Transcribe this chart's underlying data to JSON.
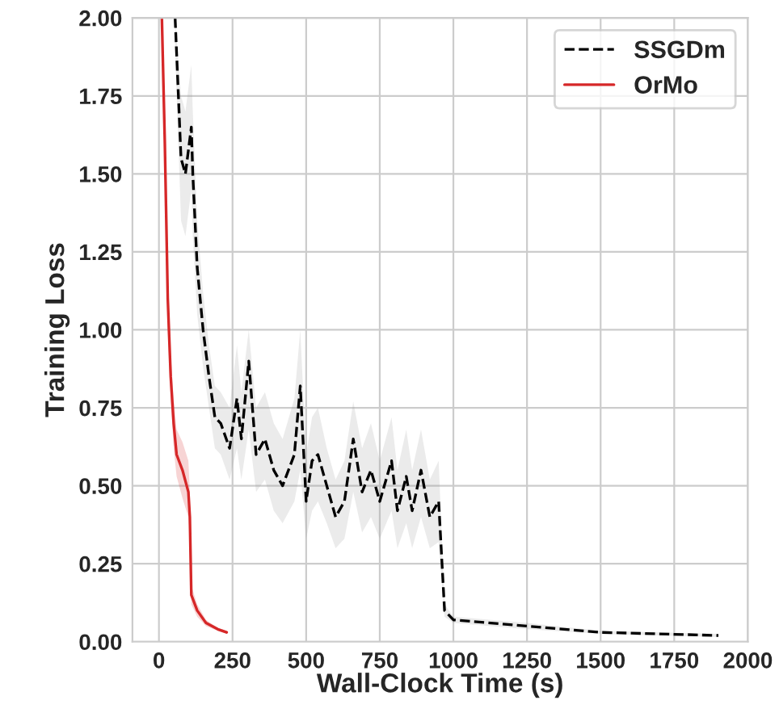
{
  "chart_data": {
    "type": "line",
    "xlabel": "Wall-Clock Time (s)",
    "ylabel": "Training Loss",
    "xlim": [
      -90,
      2000
    ],
    "xticks": [
      0,
      250,
      500,
      750,
      1000,
      1250,
      1500,
      1750,
      2000
    ],
    "ylim": [
      0,
      2
    ],
    "yticks": [
      {
        "value": 0,
        "label": "0.00"
      },
      {
        "value": 0.25,
        "label": "0.25"
      },
      {
        "value": 0.5,
        "label": "0.50"
      },
      {
        "value": 0.75,
        "label": "0.75"
      },
      {
        "value": 1,
        "label": "1.00"
      },
      {
        "value": 1.25,
        "label": "1.25"
      },
      {
        "value": 1.5,
        "label": "1.50"
      },
      {
        "value": 1.75,
        "label": "1.75"
      },
      {
        "value": 2,
        "label": "2.00"
      }
    ],
    "grid": true,
    "legend": "top right",
    "series": [
      {
        "name": "SSGDm",
        "color": "#000000",
        "line_style": "dashed",
        "x": [
          55,
          75,
          90,
          110,
          115,
          130,
          150,
          170,
          190,
          210,
          240,
          265,
          280,
          305,
          330,
          360,
          390,
          420,
          460,
          480,
          500,
          520,
          540,
          570,
          600,
          630,
          660,
          690,
          720,
          750,
          790,
          810,
          840,
          860,
          890,
          920,
          950,
          970,
          1000,
          1250,
          1500,
          1900
        ],
        "values": [
          2.0,
          1.55,
          1.5,
          1.65,
          1.5,
          1.2,
          1.0,
          0.85,
          0.72,
          0.7,
          0.62,
          0.78,
          0.65,
          0.9,
          0.6,
          0.65,
          0.55,
          0.5,
          0.6,
          0.82,
          0.45,
          0.58,
          0.6,
          0.5,
          0.4,
          0.45,
          0.65,
          0.48,
          0.55,
          0.45,
          0.58,
          0.42,
          0.53,
          0.42,
          0.55,
          0.4,
          0.45,
          0.1,
          0.07,
          0.05,
          0.03,
          0.02
        ],
        "lower": [
          1.9,
          1.35,
          1.3,
          1.45,
          1.3,
          1.05,
          0.88,
          0.75,
          0.62,
          0.6,
          0.52,
          0.62,
          0.52,
          0.68,
          0.48,
          0.52,
          0.42,
          0.38,
          0.45,
          0.55,
          0.33,
          0.42,
          0.45,
          0.38,
          0.3,
          0.33,
          0.48,
          0.35,
          0.4,
          0.33,
          0.42,
          0.3,
          0.38,
          0.3,
          0.4,
          0.3,
          0.32,
          0.08,
          0.06,
          0.04,
          0.025,
          0.015
        ],
        "upper": [
          2.0,
          1.75,
          1.7,
          1.85,
          1.7,
          1.35,
          1.12,
          0.95,
          0.82,
          0.8,
          0.75,
          0.95,
          0.8,
          1.0,
          0.75,
          0.8,
          0.7,
          0.65,
          0.78,
          1.0,
          0.6,
          0.72,
          0.75,
          0.62,
          0.52,
          0.58,
          0.77,
          0.62,
          0.7,
          0.58,
          0.72,
          0.55,
          0.68,
          0.55,
          0.68,
          0.52,
          0.58,
          0.12,
          0.08,
          0.06,
          0.035,
          0.025
        ]
      },
      {
        "name": "OrMo",
        "color": "#d62728",
        "line_style": "solid",
        "x": [
          10,
          20,
          30,
          40,
          50,
          60,
          80,
          100,
          105,
          110,
          130,
          160,
          200,
          230
        ],
        "values": [
          2.0,
          1.6,
          1.1,
          0.85,
          0.7,
          0.6,
          0.55,
          0.48,
          0.4,
          0.15,
          0.1,
          0.06,
          0.04,
          0.03
        ],
        "lower": [
          1.95,
          1.5,
          1.0,
          0.78,
          0.62,
          0.53,
          0.46,
          0.4,
          0.34,
          0.12,
          0.08,
          0.05,
          0.035,
          0.025
        ],
        "upper": [
          2.0,
          1.7,
          1.2,
          0.92,
          0.78,
          0.68,
          0.64,
          0.58,
          0.48,
          0.18,
          0.12,
          0.07,
          0.045,
          0.035
        ]
      }
    ]
  }
}
